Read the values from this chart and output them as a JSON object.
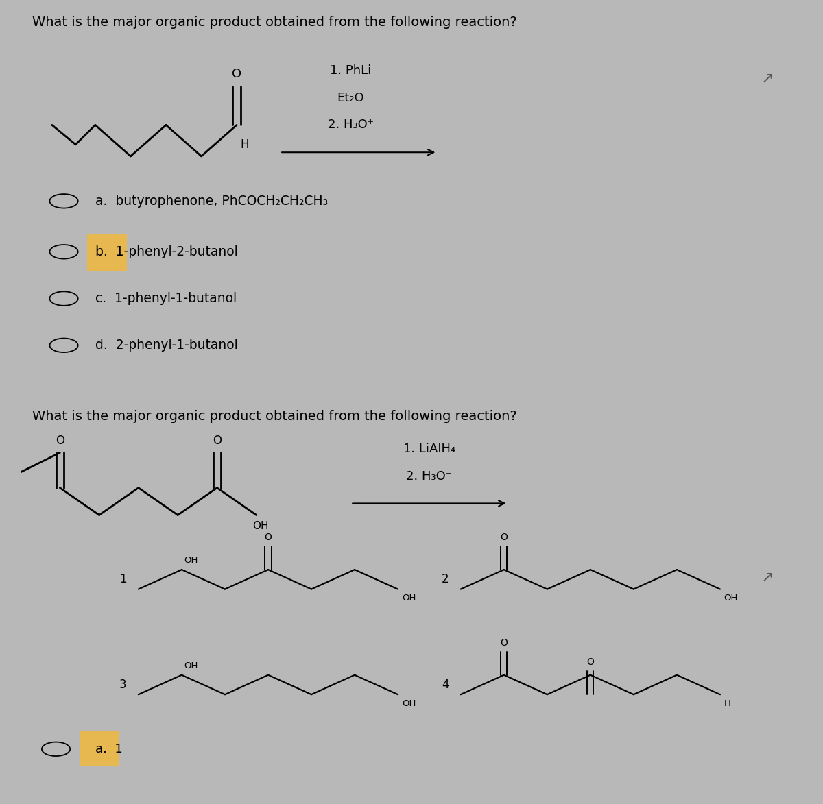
{
  "bg_color": "#b8b8b8",
  "panel1_bg": "#c8c7c0",
  "panel2_bg": "#c8c7c0",
  "title_fontsize": 14,
  "body_fontsize": 13.5,
  "title1": "What is the major organic product obtained from the following reaction?",
  "title2": "What is the major organic product obtained from the following reaction?",
  "reagents1_line1": "1. PhLi",
  "reagents1_line2": "Et₂O",
  "reagents1_line3": "2. H₃O⁺",
  "reagents2_line1": "1. LiAlH₄",
  "reagents2_line2": "2. H₃O⁺",
  "choices1": [
    "a.  butyrophenone, PhCOCH₂CH₂CH₃",
    "b.  1-phenyl-2-butanol",
    "c.  1-phenyl-1-butanol",
    "d.  2-phenyl-1-butanol"
  ],
  "answer_label2": "a.  1",
  "highlight_color": "#e8b850"
}
